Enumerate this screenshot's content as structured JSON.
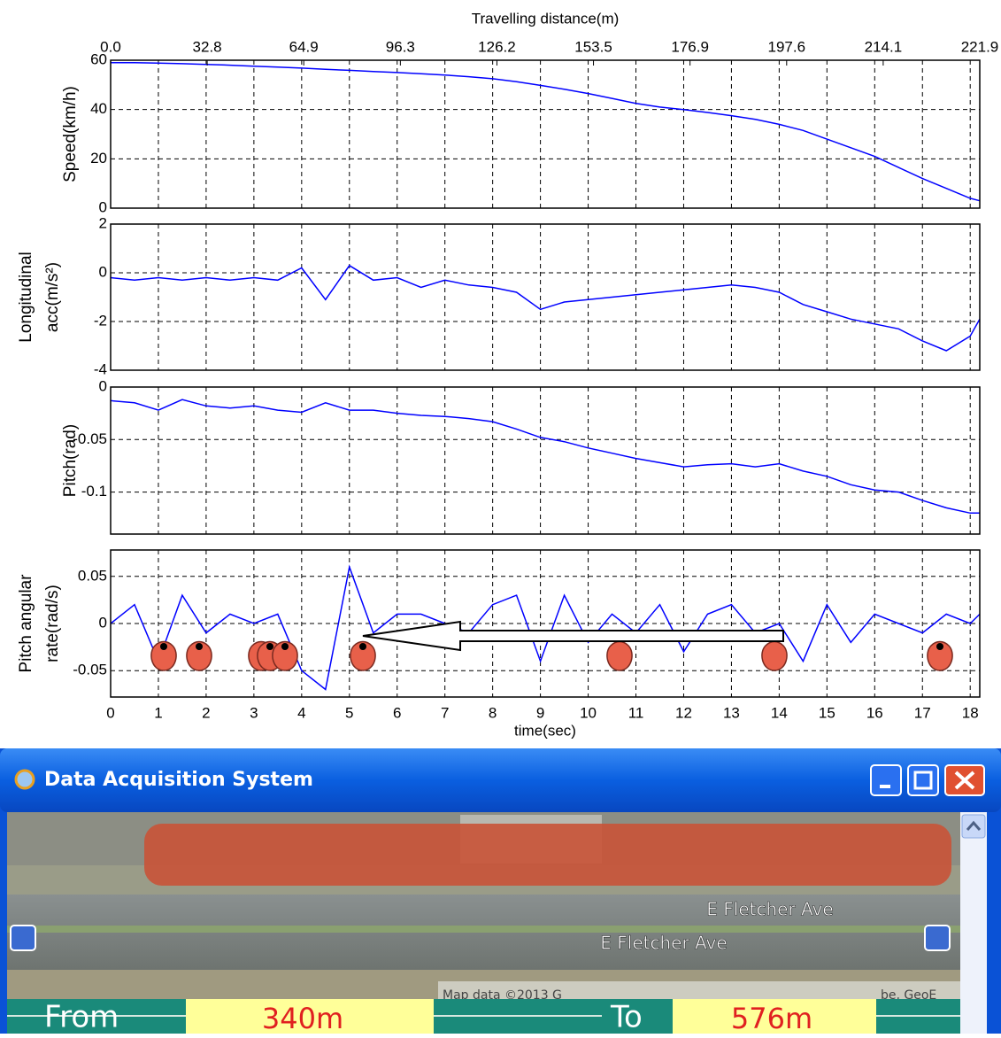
{
  "chart_data": {
    "type": "line",
    "grid": true,
    "x": [
      0,
      0.5,
      1,
      1.5,
      2,
      2.5,
      3,
      3.5,
      4,
      4.5,
      5,
      5.5,
      6,
      6.5,
      7,
      7.5,
      8,
      8.5,
      9,
      9.5,
      10,
      10.5,
      11,
      11.5,
      12,
      12.5,
      13,
      13.5,
      14,
      14.5,
      15,
      15.5,
      16,
      16.5,
      17,
      17.5,
      18,
      18.2
    ],
    "xlim": [
      0,
      18.2
    ],
    "xticks": [
      0,
      1,
      2,
      3,
      4,
      5,
      6,
      7,
      8,
      9,
      10,
      11,
      12,
      13,
      14,
      15,
      16,
      17,
      18
    ],
    "xlabel": "time(sec)",
    "x2label": "Travelling distance(m)",
    "x2ticks": [
      {
        "value": 0,
        "label": "0.0"
      },
      {
        "value": 2.022,
        "label": "32.8"
      },
      {
        "value": 4.044,
        "label": "64.9"
      },
      {
        "value": 6.067,
        "label": "96.3"
      },
      {
        "value": 8.089,
        "label": "126.2"
      },
      {
        "value": 10.111,
        "label": "153.5"
      },
      {
        "value": 12.133,
        "label": "176.9"
      },
      {
        "value": 14.156,
        "label": "197.6"
      },
      {
        "value": 16.178,
        "label": "214.1"
      },
      {
        "value": 18.2,
        "label": "221.9"
      }
    ],
    "panels": [
      {
        "ylabel": [
          "Speed(km/h)"
        ],
        "ylim": [
          0,
          60
        ],
        "yticks": [
          0,
          20,
          40,
          60
        ],
        "series": [
          {
            "color": "#0000ff",
            "values": [
              59,
              59,
              58.8,
              58.6,
              58.3,
              58,
              57.6,
              57.2,
              56.8,
              56.3,
              55.9,
              55.4,
              55,
              54.5,
              54,
              53.3,
              52.5,
              51.3,
              49.8,
              48.2,
              46.5,
              44.5,
              42.5,
              41,
              40,
              38.8,
              37.5,
              36,
              34,
              31.5,
              28,
              24.5,
              21,
              16.5,
              12,
              8,
              4,
              3
            ]
          }
        ]
      },
      {
        "ylabel": [
          "Longitudinal",
          "acc(m/s²)"
        ],
        "ylim": [
          -4,
          2
        ],
        "yticks": [
          -4,
          -2,
          0,
          2
        ],
        "series": [
          {
            "color": "#0000ff",
            "values": [
              -0.2,
              -0.3,
              -0.2,
              -0.3,
              -0.2,
              -0.3,
              -0.2,
              -0.3,
              0.2,
              -1.1,
              0.3,
              -0.3,
              -0.2,
              -0.6,
              -0.3,
              -0.5,
              -0.6,
              -0.8,
              -1.5,
              -1.2,
              -1.1,
              -1,
              -0.9,
              -0.8,
              -0.7,
              -0.6,
              -0.5,
              -0.6,
              -0.8,
              -1.3,
              -1.6,
              -1.9,
              -2.1,
              -2.3,
              -2.8,
              -3.2,
              -2.6,
              -1.9
            ]
          }
        ]
      },
      {
        "ylabel": [
          "Pitch(rad)"
        ],
        "ylim": [
          -0.14,
          0
        ],
        "yticks": [
          -0.1,
          -0.05,
          0
        ],
        "series": [
          {
            "color": "#0000ff",
            "values": [
              -0.013,
              -0.015,
              -0.022,
              -0.012,
              -0.018,
              -0.02,
              -0.018,
              -0.022,
              -0.024,
              -0.015,
              -0.022,
              -0.022,
              -0.025,
              -0.027,
              -0.028,
              -0.03,
              -0.033,
              -0.04,
              -0.048,
              -0.052,
              -0.058,
              -0.063,
              -0.068,
              -0.072,
              -0.076,
              -0.074,
              -0.073,
              -0.076,
              -0.073,
              -0.08,
              -0.085,
              -0.093,
              -0.098,
              -0.1,
              -0.108,
              -0.115,
              -0.12,
              -0.12
            ]
          }
        ]
      },
      {
        "ylabel": [
          "Pitch angular",
          "rate(rad/s)"
        ],
        "ylim": [
          -0.078,
          0.078
        ],
        "yticks": [
          -0.05,
          0,
          0.05
        ],
        "series": [
          {
            "color": "#0000ff",
            "values": [
              0,
              0.02,
              -0.04,
              0.03,
              -0.01,
              0.01,
              0,
              0.01,
              -0.05,
              -0.07,
              0.06,
              -0.01,
              0.01,
              0.01,
              0,
              -0.01,
              0.02,
              0.03,
              -0.04,
              0.03,
              -0.02,
              0.01,
              -0.01,
              0.02,
              -0.03,
              0.01,
              0.02,
              -0.01,
              0,
              -0.04,
              0.02,
              -0.02,
              0.01,
              0,
              -0.01,
              0.01,
              0,
              0.01
            ]
          }
        ]
      }
    ]
  },
  "window": {
    "title": "Data Acquisition System",
    "road_labels": [
      "E Fletcher Ave",
      "E Fletcher Ave"
    ],
    "map_credit": "Map data ©2013 G",
    "map_credit_right": "be, GeoE",
    "from_label": "From",
    "from_value": "340m",
    "to_label": "To",
    "to_value": "576m"
  }
}
